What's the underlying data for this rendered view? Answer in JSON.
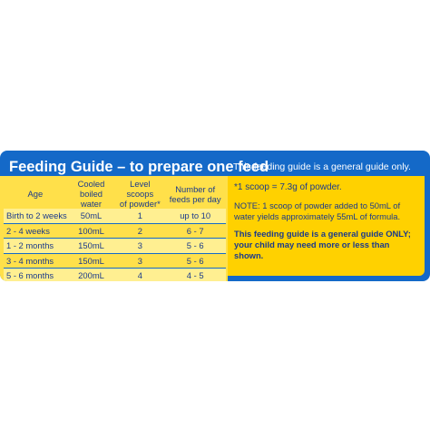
{
  "panel": {
    "title": "Feeding Guide – to prepare one feed",
    "subtitle": "This feeding guide is a general guide only."
  },
  "table": {
    "headers": [
      "Age",
      "Cooled boiled water",
      "Level scoops of powder*",
      "Number of feeds per day"
    ],
    "header_lines": [
      [
        "Age",
        ""
      ],
      [
        "Cooled boiled",
        "water"
      ],
      [
        "Level scoops",
        "of powder*"
      ],
      [
        "Number of",
        "feeds per day"
      ]
    ],
    "rows": [
      [
        "Birth to 2 weeks",
        "50mL",
        "1",
        "up to 10"
      ],
      [
        "2 - 4 weeks",
        "100mL",
        "2",
        "6 - 7"
      ],
      [
        "1 - 2 months",
        "150mL",
        "3",
        "5 - 6"
      ],
      [
        "3 - 4 months",
        "150mL",
        "3",
        "5 - 6"
      ],
      [
        "5 - 6 months",
        "200mL",
        "4",
        "4 - 5"
      ]
    ]
  },
  "info": {
    "scoop": "*1 scoop = 7.3g of powder.",
    "note": "NOTE: 1 scoop of powder added to 50mL of water yields approximately 55mL of formula.",
    "bold_note": "This feeding guide is a general guide ONLY; your child may need more or less than shown."
  },
  "colors": {
    "panel_blue": "#1469c8",
    "table_yellow": "#ffe04a",
    "row_shade": "#ffef91",
    "info_yellow": "#ffd100",
    "text_navy": "#1a3a8c"
  }
}
